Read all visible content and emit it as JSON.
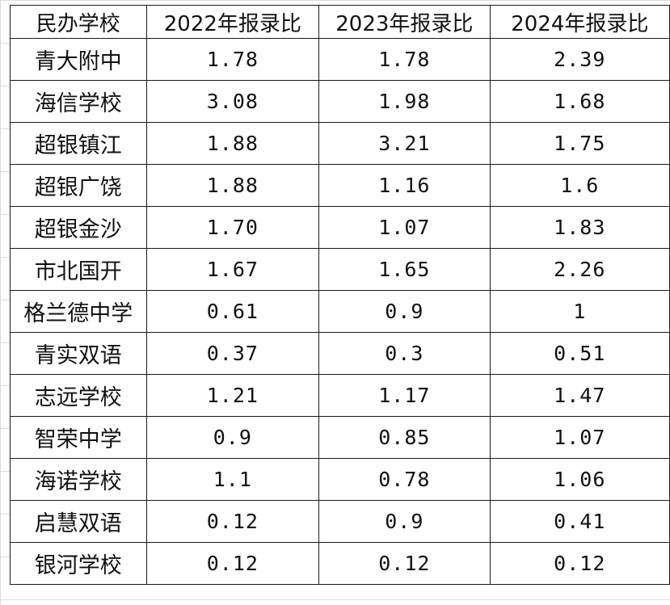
{
  "table": {
    "headers": [
      "民办学校",
      "2022年报录比",
      "2023年报录比",
      "2024年报录比"
    ],
    "rows": [
      [
        "青大附中",
        "1.78",
        "1.78",
        "2.39"
      ],
      [
        "海信学校",
        "3.08",
        "1.98",
        "1.68"
      ],
      [
        "超银镇江",
        "1.88",
        "3.21",
        "1.75"
      ],
      [
        "超银广饶",
        "1.88",
        "1.16",
        "1.6"
      ],
      [
        "超银金沙",
        "1.70",
        "1.07",
        "1.83"
      ],
      [
        "市北国开",
        "1.67",
        "1.65",
        "2.26"
      ],
      [
        "格兰德中学",
        "0.61",
        "0.9",
        "1"
      ],
      [
        "青实双语",
        "0.37",
        "0.3",
        "0.51"
      ],
      [
        "志远学校",
        "1.21",
        "1.17",
        "1.47"
      ],
      [
        "智荣中学",
        "0.9",
        "0.85",
        "1.07"
      ],
      [
        "海诺学校",
        "1.1",
        "0.78",
        "1.06"
      ],
      [
        "启慧双语",
        "0.12",
        "0.9",
        "0.41"
      ],
      [
        "银河学校",
        "0.12",
        "0.12",
        "0.12"
      ]
    ]
  }
}
